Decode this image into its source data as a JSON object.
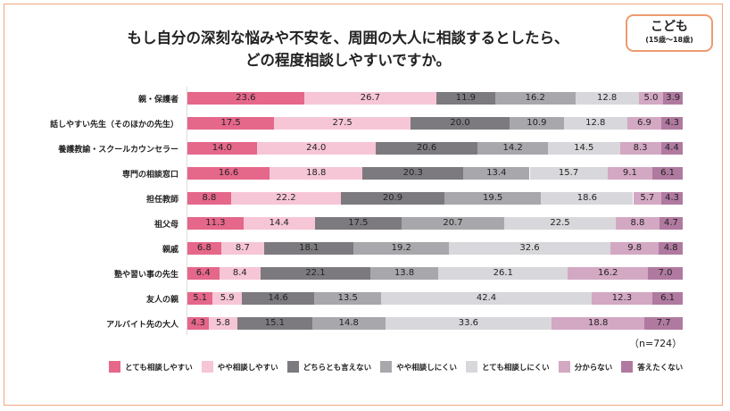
{
  "chart_data": {
    "type": "bar",
    "orientation": "horizontal",
    "stacked": true,
    "title": "もし自分の深刻な悩みや不安を、周囲の大人に相談するとしたら、どの程度相談しやすいですか。",
    "title_lines": [
      "もし自分の深刻な悩みや不安を、周囲の大人に相談するとしたら、",
      "どの程度相談しやすいですか。"
    ],
    "badge": {
      "label": "こども",
      "sub": "(15歳～18歳)"
    },
    "note": "（n=724）",
    "unit": "%",
    "xlim": [
      0,
      100
    ],
    "legend_position": "bottom",
    "categories": [
      "親・保護者",
      "話しやすい先生（そのほかの先生）",
      "養護教諭・スクールカウンセラー",
      "専門の相談窓口",
      "担任教師",
      "祖父母",
      "親戚",
      "塾や習い事の先生",
      "友人の親",
      "アルバイト先の大人"
    ],
    "series": [
      {
        "name": "とても相談しやすい",
        "color": "#e5678a",
        "values": [
          23.6,
          17.5,
          14.0,
          16.6,
          8.8,
          11.3,
          6.8,
          6.4,
          5.1,
          4.3
        ]
      },
      {
        "name": "やや相談しやすい",
        "color": "#f6c6d6",
        "values": [
          26.7,
          27.5,
          24.0,
          18.8,
          22.2,
          14.4,
          8.7,
          8.4,
          5.9,
          5.8
        ]
      },
      {
        "name": "どちらとも言えない",
        "color": "#7c7a7f",
        "values": [
          11.9,
          20.0,
          20.6,
          20.3,
          20.9,
          17.5,
          18.1,
          22.1,
          14.6,
          15.1
        ]
      },
      {
        "name": "やや相談しにくい",
        "color": "#a8a7ab",
        "values": [
          16.2,
          10.9,
          14.2,
          13.4,
          19.5,
          20.7,
          19.2,
          13.8,
          13.5,
          14.8
        ]
      },
      {
        "name": "とても相談しにくい",
        "color": "#d8d7db",
        "values": [
          12.8,
          12.8,
          14.5,
          15.7,
          18.6,
          22.5,
          32.6,
          26.1,
          42.4,
          33.6
        ]
      },
      {
        "name": "分からない",
        "color": "#d3a8c3",
        "values": [
          5.0,
          6.9,
          8.3,
          9.1,
          5.7,
          8.8,
          9.8,
          16.2,
          12.3,
          18.8
        ]
      },
      {
        "name": "答えたくない",
        "color": "#b07aa0",
        "values": [
          3.9,
          4.3,
          4.4,
          6.1,
          4.3,
          4.7,
          4.8,
          7.0,
          6.1,
          7.7
        ]
      }
    ]
  }
}
